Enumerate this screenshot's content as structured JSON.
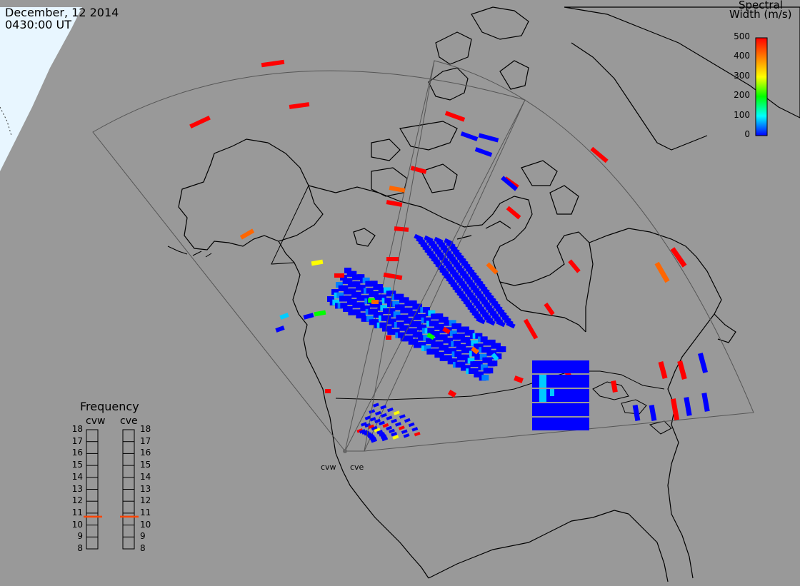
{
  "header": {
    "date": "December, 12 2014",
    "time": "0430:00 UT"
  },
  "colorbar": {
    "title_line1": "Spectral",
    "title_line2": "Width (m/s)",
    "ticks": [
      "500",
      "400",
      "300",
      "200",
      "100",
      "0"
    ],
    "min": 0,
    "max": 500,
    "colors": [
      "#ff0000",
      "#ff8000",
      "#ffff00",
      "#00ff00",
      "#00ffff",
      "#0000ff"
    ]
  },
  "frequency_panel": {
    "title": "Frequency",
    "radars": [
      {
        "name": "cvw",
        "frequency_mhz": 10.7
      },
      {
        "name": "cve",
        "frequency_mhz": 10.7
      }
    ],
    "ticks": [
      "18",
      "17",
      "16",
      "15",
      "14",
      "13",
      "12",
      "11",
      "10",
      "9",
      "8"
    ],
    "marker_color": "#ff4400"
  },
  "sites": {
    "left_label": "cvw",
    "right_label": "cve"
  },
  "colors": {
    "background": "#999999",
    "land_outline": "#000000",
    "sunlit": "#e8f6ff",
    "fov": "#444444",
    "low_width": "#0000ff",
    "high_width": "#ff0000"
  }
}
